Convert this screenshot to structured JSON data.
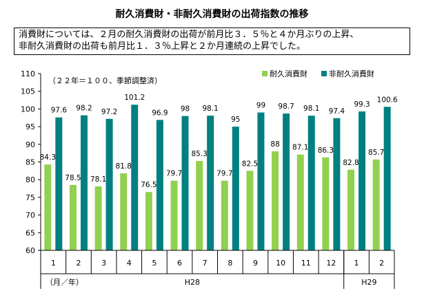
{
  "title": "耐久消費財・非耐久消費財の出荷指数の推移",
  "summary": {
    "line1": "消費財については、２月の耐久消費財の出荷が前月比３．５％と４か月ぶりの上昇、",
    "line2": "非耐久消費財の出荷も前月比１．３％上昇と２か月連続の上昇でした。"
  },
  "colors": {
    "durable": "#92D050",
    "nondurable": "#008080"
  },
  "chart_data": {
    "type": "bar",
    "note": "（２２年＝１００、季節調整済）",
    "categories": [
      "1",
      "2",
      "3",
      "4",
      "5",
      "6",
      "7",
      "8",
      "9",
      "10",
      "11",
      "12",
      "1",
      "2"
    ],
    "groups": [
      {
        "label": "H28",
        "count": 12
      },
      {
        "label": "H29",
        "count": 2
      }
    ],
    "unit_label": "（月／年）",
    "ylim": [
      60,
      110
    ],
    "yticks": [
      60,
      65,
      70,
      75,
      80,
      85,
      90,
      95,
      100,
      105,
      110
    ],
    "grid": false,
    "legend": "top-right",
    "series": [
      {
        "name": "耐久消費財",
        "values": [
          84.3,
          78.5,
          78.1,
          81.8,
          76.5,
          79.7,
          85.3,
          79.7,
          82.5,
          88,
          87.1,
          86.3,
          82.8,
          85.7
        ]
      },
      {
        "name": "非耐久消費財",
        "values": [
          97.6,
          98.2,
          97.2,
          101.2,
          96.9,
          98,
          98.1,
          95,
          99,
          98.7,
          98.1,
          97.4,
          99.3,
          100.6
        ]
      }
    ]
  }
}
